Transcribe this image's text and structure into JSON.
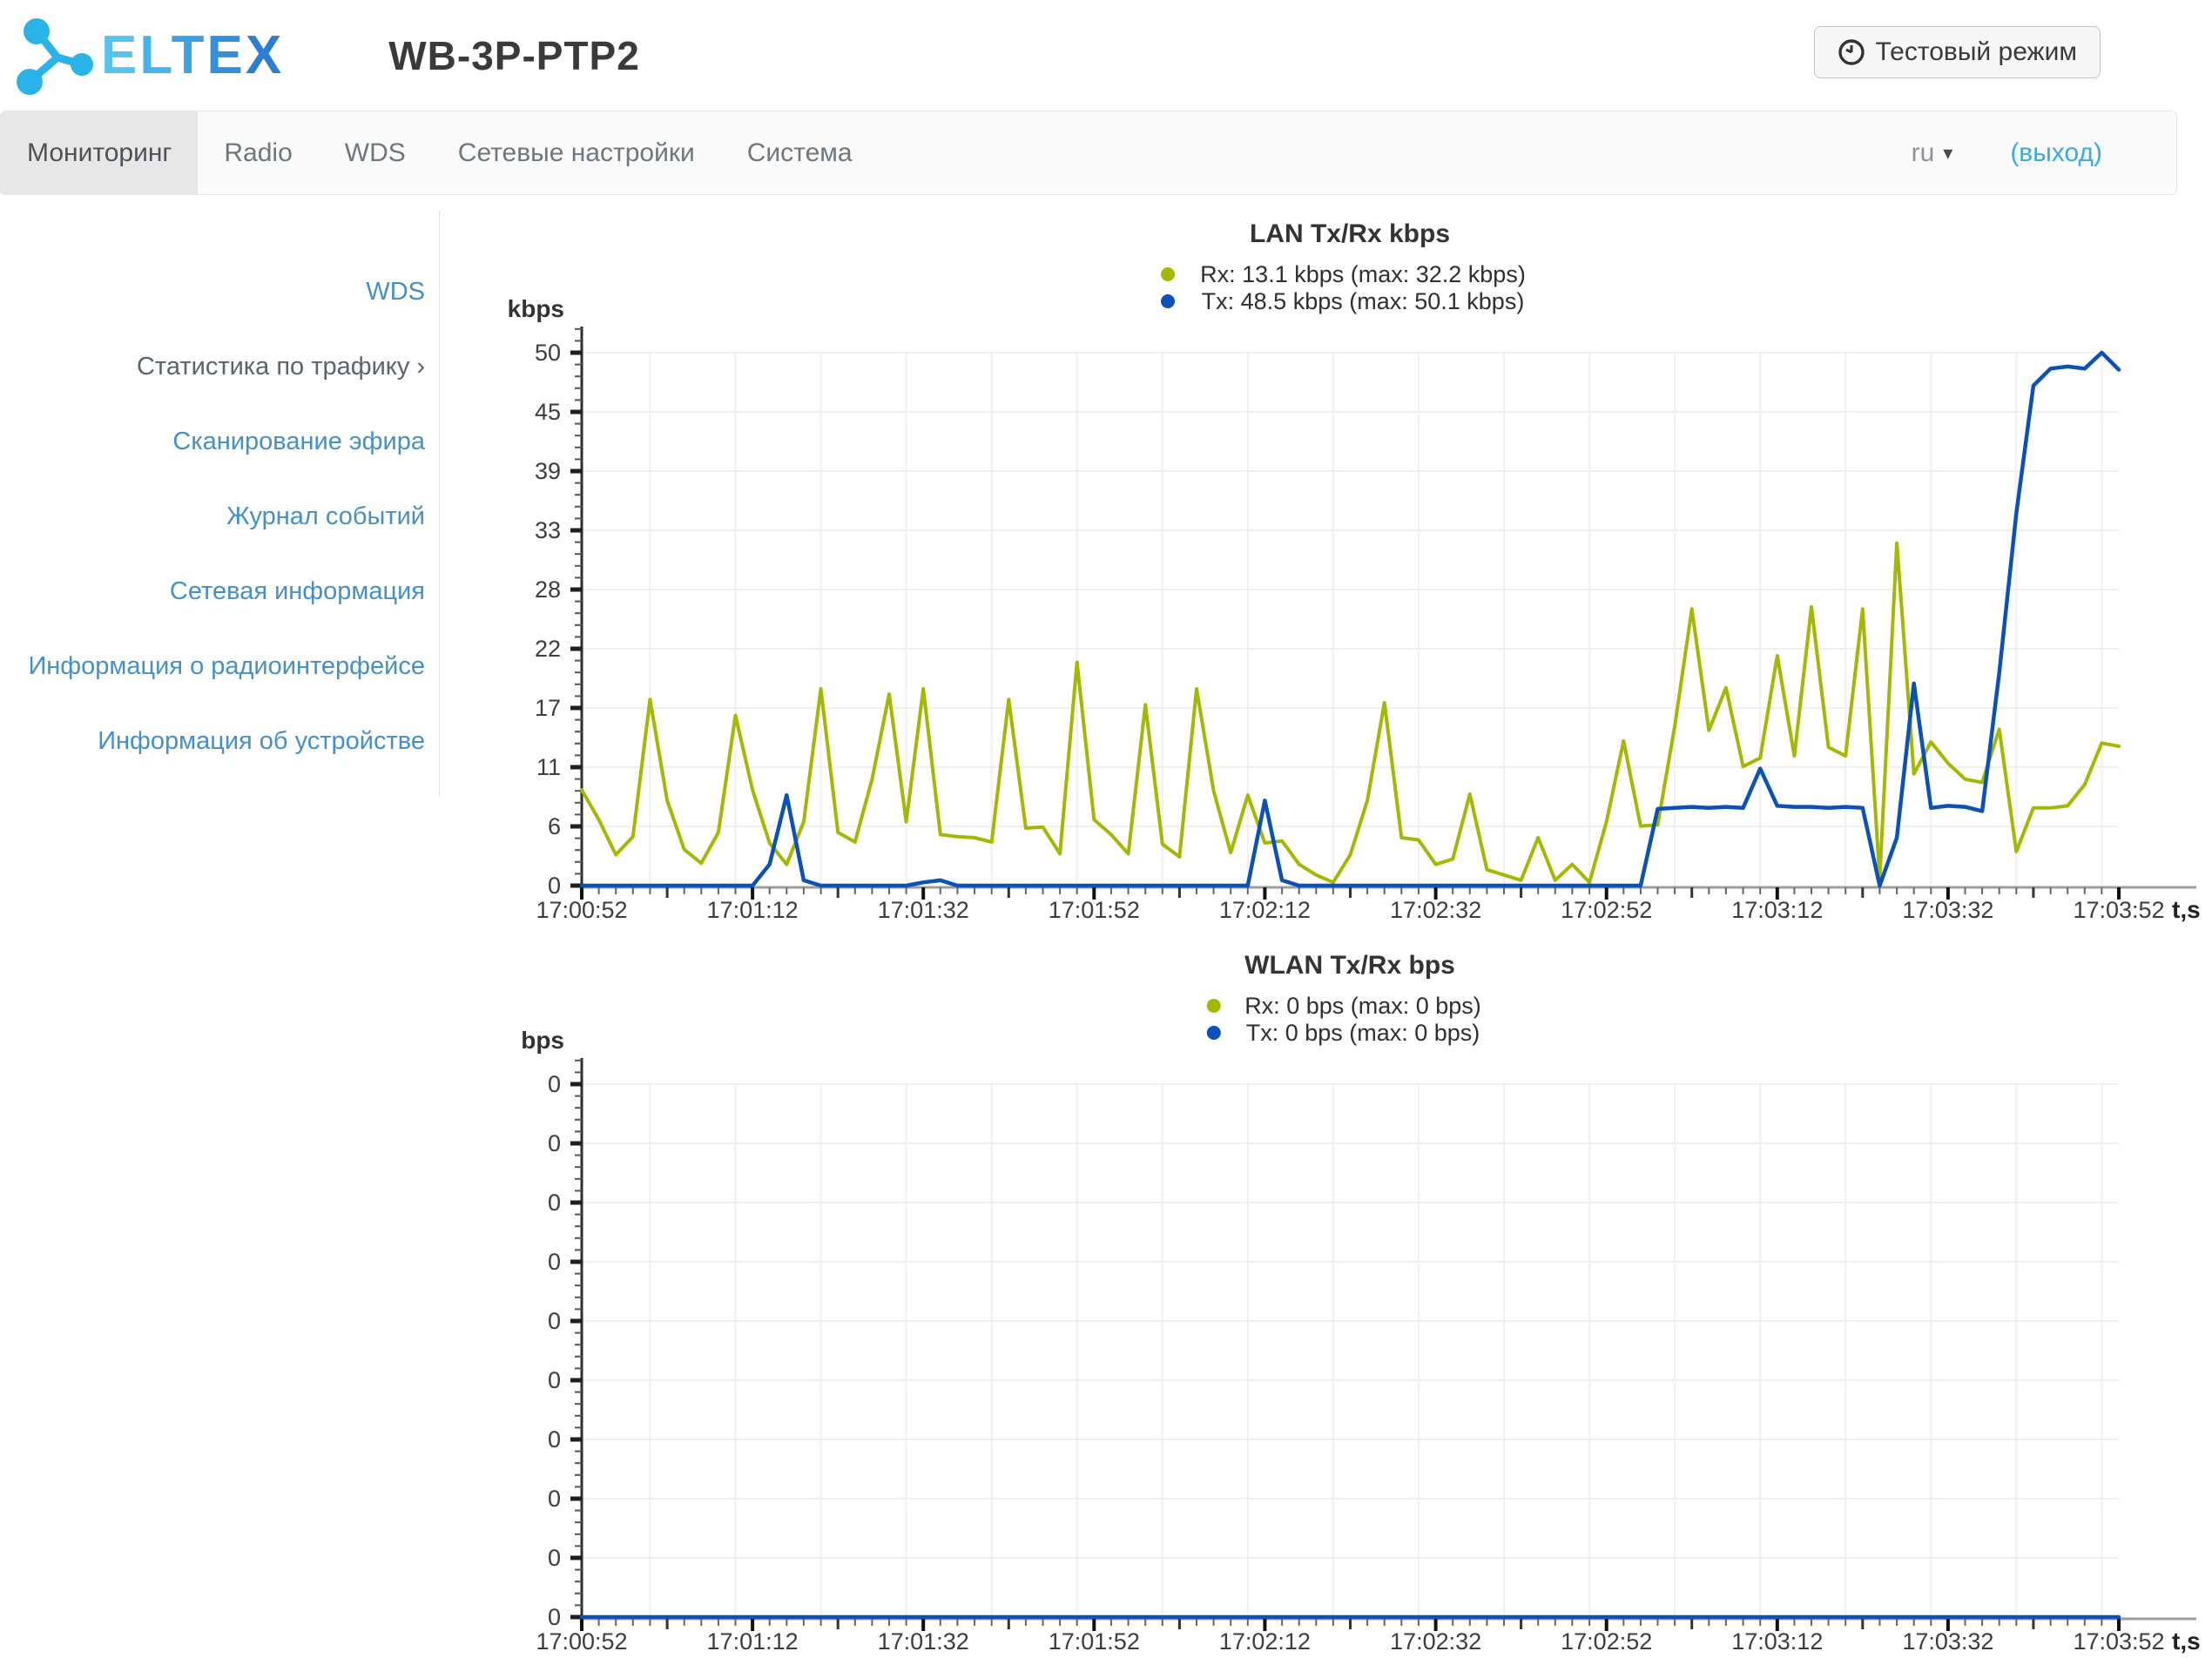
{
  "header": {
    "logo_text": "ELTEX",
    "logo_letter_colors": [
      "#55c5f0",
      "#46b4ea",
      "#3ba3e2",
      "#3390da",
      "#2b7ed0"
    ],
    "logo_icon_color": "#29b3e8",
    "title": "WB-3P-PTP2",
    "test_mode_button": "Тестовый режим"
  },
  "navbar": {
    "tabs": [
      {
        "id": "monitoring",
        "label": "Мониторинг",
        "active": true
      },
      {
        "id": "radio",
        "label": "Radio",
        "active": false
      },
      {
        "id": "wds",
        "label": "WDS",
        "active": false
      },
      {
        "id": "network-settings",
        "label": "Сетевые настройки",
        "active": false
      },
      {
        "id": "system",
        "label": "Система",
        "active": false
      }
    ],
    "language": "ru",
    "logout": "(выход)"
  },
  "sidebar": {
    "items": [
      {
        "id": "wds",
        "label": "WDS",
        "active": false
      },
      {
        "id": "traffic-stats",
        "label": "Статистика по трафику",
        "active": true,
        "chevron": "›"
      },
      {
        "id": "air-scan",
        "label": "Сканирование эфира",
        "active": false
      },
      {
        "id": "event-log",
        "label": "Журнал событий",
        "active": false
      },
      {
        "id": "network-info",
        "label": "Сетевая информация",
        "active": false
      },
      {
        "id": "radio-info",
        "label": "Информация о радиоинтерфейсе",
        "active": false
      },
      {
        "id": "device-info",
        "label": "Информация об устройстве",
        "active": false
      }
    ]
  },
  "colors": {
    "rx": "#a4b800",
    "tx": "#0b51b7",
    "grid": "#f0f0f0",
    "axis_y": "#2e2e2e",
    "axis_x": "#9e9e9e"
  },
  "chart_data": [
    {
      "type": "line",
      "title": "LAN Tx/Rx kbps",
      "unit": "kbps",
      "xlabel": "t,s",
      "legend": [
        {
          "series": "rx",
          "label": "Rx: 13.1 kbps (max: 32.2 kbps)"
        },
        {
          "series": "tx",
          "label": "Tx: 48.5 kbps (max: 50.1 kbps)"
        }
      ],
      "x_tick_labels": [
        "17:00:52",
        "17:01:12",
        "17:01:32",
        "17:01:52",
        "17:02:12",
        "17:02:32",
        "17:02:52",
        "17:03:12",
        "17:03:32",
        "17:03:52"
      ],
      "y_tick_labels": [
        "0",
        "6",
        "11",
        "17",
        "22",
        "28",
        "33",
        "39",
        "45",
        "50"
      ],
      "y_max": 50.1,
      "x_step_seconds": 2,
      "x_range_seconds": 180,
      "current": {
        "rx": "13.1 kbps",
        "tx": "48.5 kbps"
      },
      "max": {
        "rx": "32.2 kbps",
        "tx": "50.1 kbps"
      },
      "series": [
        {
          "name": "Rx",
          "color_key": "rx",
          "values": [
            9,
            6.2,
            2.9,
            4.6,
            17.5,
            8,
            3.4,
            2.1,
            5,
            16,
            9,
            4,
            2,
            6,
            18.5,
            5,
            4.1,
            10,
            18,
            6,
            18.5,
            4.8,
            4.6,
            4.5,
            4.1,
            17.5,
            5.4,
            5.5,
            3,
            21,
            6.2,
            4.8,
            3,
            17,
            3.9,
            2.7,
            18.5,
            8.9,
            3.1,
            8.5,
            4,
            4.2,
            2,
            1,
            0.3,
            2.9,
            8,
            17.2,
            4.5,
            4.3,
            2,
            2.5,
            8.6,
            1.5,
            1,
            0.5,
            4.5,
            0.5,
            2,
            0.3,
            6,
            13.6,
            5.6,
            5.7,
            15,
            26,
            14.6,
            18.6,
            11.2,
            12,
            21.6,
            12.2,
            26.2,
            13,
            12.2,
            26,
            0.7,
            32.2,
            10.5,
            13.5,
            11.5,
            10,
            9.7,
            14.7,
            3.2,
            7.3,
            7.3,
            7.5,
            9.5,
            13.4,
            13.1
          ]
        },
        {
          "name": "Tx",
          "color_key": "tx",
          "values": [
            0,
            0,
            0,
            0,
            0,
            0,
            0,
            0,
            0,
            0,
            0,
            2,
            8.5,
            0.5,
            0,
            0,
            0,
            0,
            0,
            0,
            0.3,
            0.5,
            0,
            0,
            0,
            0,
            0,
            0,
            0,
            0,
            0,
            0,
            0,
            0,
            0,
            0,
            0,
            0,
            0,
            0,
            8,
            0.5,
            0,
            0,
            0,
            0,
            0,
            0,
            0,
            0,
            0,
            0,
            0,
            0,
            0,
            0,
            0,
            0,
            0,
            0,
            0,
            0,
            0,
            7.2,
            7.3,
            7.4,
            7.3,
            7.4,
            7.3,
            11,
            7.5,
            7.4,
            7.4,
            7.3,
            7.4,
            7.3,
            0,
            4.5,
            19,
            7.3,
            7.5,
            7.4,
            7,
            20,
            35,
            47,
            48.6,
            48.8,
            48.6,
            50.1,
            48.5
          ]
        }
      ]
    },
    {
      "type": "line",
      "title": "WLAN Tx/Rx bps",
      "unit": "bps",
      "xlabel": "t,s",
      "legend": [
        {
          "series": "rx",
          "label": "Rx: 0 bps (max: 0 bps)"
        },
        {
          "series": "tx",
          "label": "Tx: 0 bps (max: 0 bps)"
        }
      ],
      "x_tick_labels": [
        "17:00:52",
        "17:01:12",
        "17:01:32",
        "17:01:52",
        "17:02:12",
        "17:02:32",
        "17:02:52",
        "17:03:12",
        "17:03:32",
        "17:03:52"
      ],
      "y_tick_labels": [
        "0",
        "0",
        "0",
        "0",
        "0",
        "0",
        "0",
        "0",
        "0",
        "0"
      ],
      "y_max": 1,
      "x_step_seconds": 2,
      "x_range_seconds": 180,
      "current": {
        "rx": "0 bps",
        "tx": "0 bps"
      },
      "max": {
        "rx": "0 bps",
        "tx": "0 bps"
      },
      "series": [
        {
          "name": "Rx",
          "color_key": "rx",
          "values": [
            0,
            0,
            0,
            0,
            0,
            0,
            0,
            0,
            0,
            0,
            0,
            0,
            0,
            0,
            0,
            0,
            0,
            0,
            0,
            0,
            0,
            0,
            0,
            0,
            0,
            0,
            0,
            0,
            0,
            0,
            0,
            0,
            0,
            0,
            0,
            0,
            0,
            0,
            0,
            0,
            0,
            0,
            0,
            0,
            0,
            0,
            0,
            0,
            0,
            0,
            0,
            0,
            0,
            0,
            0,
            0,
            0,
            0,
            0,
            0,
            0,
            0,
            0,
            0,
            0,
            0,
            0,
            0,
            0,
            0,
            0,
            0,
            0,
            0,
            0,
            0,
            0,
            0,
            0,
            0,
            0,
            0,
            0,
            0,
            0,
            0,
            0,
            0,
            0,
            0,
            0
          ]
        },
        {
          "name": "Tx",
          "color_key": "tx",
          "values": [
            0,
            0,
            0,
            0,
            0,
            0,
            0,
            0,
            0,
            0,
            0,
            0,
            0,
            0,
            0,
            0,
            0,
            0,
            0,
            0,
            0,
            0,
            0,
            0,
            0,
            0,
            0,
            0,
            0,
            0,
            0,
            0,
            0,
            0,
            0,
            0,
            0,
            0,
            0,
            0,
            0,
            0,
            0,
            0,
            0,
            0,
            0,
            0,
            0,
            0,
            0,
            0,
            0,
            0,
            0,
            0,
            0,
            0,
            0,
            0,
            0,
            0,
            0,
            0,
            0,
            0,
            0,
            0,
            0,
            0,
            0,
            0,
            0,
            0,
            0,
            0,
            0,
            0,
            0,
            0,
            0,
            0,
            0,
            0,
            0,
            0,
            0,
            0,
            0,
            0,
            0
          ]
        }
      ]
    }
  ]
}
